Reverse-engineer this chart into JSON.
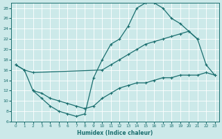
{
  "xlabel": "Humidex (Indice chaleur)",
  "bg_color": "#cce9e9",
  "grid_color": "#b0d8d8",
  "line_color": "#1a6e6e",
  "xlim": [
    -0.5,
    23.5
  ],
  "ylim": [
    6,
    29
  ],
  "yticks": [
    6,
    8,
    10,
    12,
    14,
    16,
    18,
    20,
    22,
    24,
    26,
    28
  ],
  "xticks": [
    0,
    1,
    2,
    3,
    4,
    5,
    6,
    7,
    8,
    9,
    10,
    11,
    12,
    13,
    14,
    15,
    16,
    17,
    18,
    19,
    20,
    21,
    22,
    23
  ],
  "line1_x": [
    0,
    1,
    2,
    3,
    4,
    5,
    6,
    7,
    8,
    9,
    10,
    11,
    12,
    13,
    14,
    15,
    16,
    17,
    18,
    19,
    20,
    21
  ],
  "line1_y": [
    17,
    16,
    12,
    10.5,
    9.0,
    8.0,
    7.5,
    7.0,
    7.5,
    14.5,
    18.0,
    21.0,
    22.0,
    24.5,
    28.0,
    29.0,
    29.0,
    28.0,
    26.0,
    25.0,
    23.5,
    22.0
  ],
  "line2_x": [
    0,
    1,
    2,
    10,
    11,
    12,
    13,
    14,
    15,
    16,
    17,
    18,
    19,
    20,
    21,
    22,
    23
  ],
  "line2_y": [
    17,
    16,
    15.5,
    16.0,
    17.0,
    18.0,
    19.0,
    20.0,
    21.0,
    21.5,
    22.0,
    22.5,
    23.0,
    23.5,
    22.0,
    17.0,
    15.0
  ],
  "line3_x": [
    2,
    3,
    4,
    5,
    6,
    7,
    8,
    9,
    10,
    11,
    12,
    13,
    14,
    15,
    16,
    17,
    18,
    19,
    20,
    21,
    22,
    23
  ],
  "line3_y": [
    12.0,
    11.5,
    10.5,
    10.0,
    9.5,
    9.0,
    8.5,
    9.0,
    10.5,
    11.5,
    12.5,
    13.0,
    13.5,
    13.5,
    14.0,
    14.5,
    14.5,
    15.0,
    15.0,
    15.0,
    15.5,
    15.0
  ]
}
